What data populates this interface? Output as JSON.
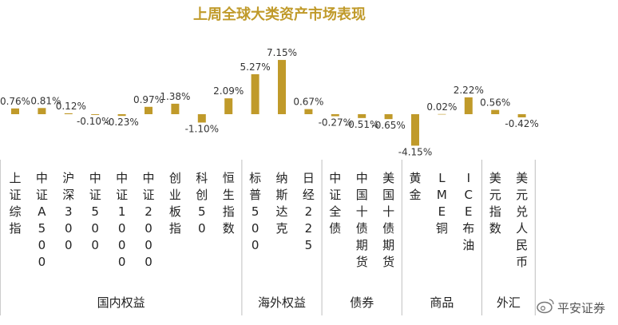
{
  "chart_data": {
    "type": "bar",
    "title": "上周全球大类资产市场表现",
    "bar_color": "#c09a2a",
    "categories": [
      "上证综指",
      "中证A500",
      "沪深300",
      "中证500",
      "中证1000",
      "中证2000",
      "创业板指",
      "科创50",
      "恒生指数",
      "标普500",
      "纳斯达克",
      "日经225",
      "中证全债",
      "中国十债期货",
      "美国十债期货",
      "黄金",
      "LME铜",
      "ICE布油",
      "美元指数",
      "美元兑人民币"
    ],
    "values": [
      0.76,
      0.81,
      0.12,
      -0.1,
      -0.23,
      0.97,
      1.38,
      -1.1,
      2.09,
      5.27,
      7.15,
      0.67,
      -0.27,
      -0.51,
      -0.65,
      -4.15,
      0.02,
      2.22,
      0.56,
      -0.42
    ],
    "value_labels": [
      "0.76%",
      "0.81%",
      "0.12%",
      "-0.10%",
      "-0.23%",
      "0.97%",
      "1.38%",
      "-1.10%",
      "2.09%",
      "5.27%",
      "7.15%",
      "0.67%",
      "-0.27%",
      "-0.51%",
      "-0.65%",
      "-4.15%",
      "0.02%",
      "2.22%",
      "0.56%",
      "-0.42%"
    ],
    "groups": [
      {
        "name": "国内权益",
        "count": 9
      },
      {
        "name": "海外权益",
        "count": 3
      },
      {
        "name": "债券",
        "count": 3
      },
      {
        "name": "商品",
        "count": 3
      },
      {
        "name": "外汇",
        "count": 2
      }
    ],
    "grid": false,
    "legend": "none"
  },
  "watermark": "平安证券"
}
